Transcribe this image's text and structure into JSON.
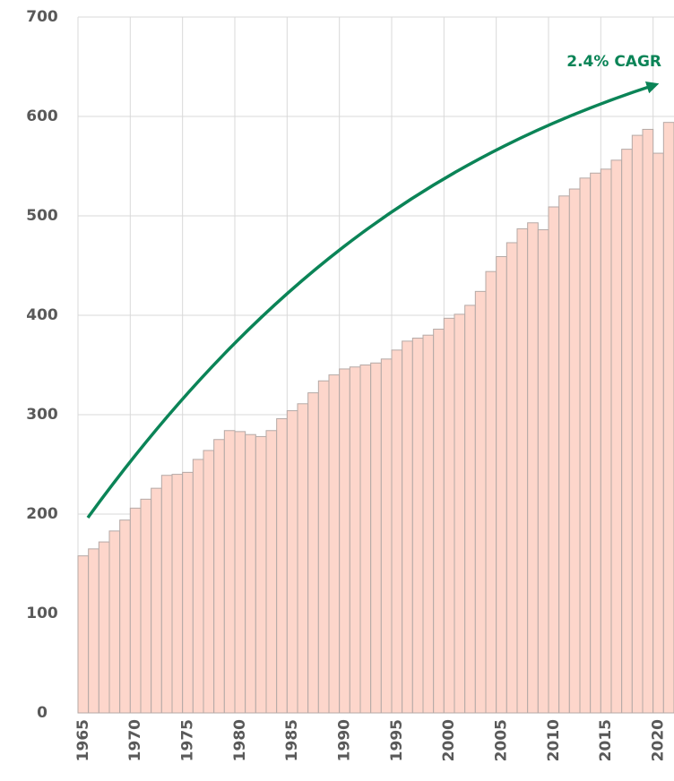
{
  "chart_data": {
    "type": "bar",
    "annotation": "2.4% CAGR",
    "categories": [
      "1965",
      null,
      null,
      null,
      null,
      "1970",
      null,
      null,
      null,
      null,
      "1975",
      null,
      null,
      null,
      null,
      "1980",
      null,
      null,
      null,
      null,
      "1985",
      null,
      null,
      null,
      null,
      "1990",
      null,
      null,
      null,
      null,
      "1995",
      null,
      null,
      null,
      null,
      "2000",
      null,
      null,
      null,
      null,
      "2005",
      null,
      null,
      null,
      null,
      "2010",
      null,
      null,
      null,
      null,
      "2015",
      null,
      null,
      null,
      null,
      "2020",
      null
    ],
    "values": [
      158,
      165,
      172,
      183,
      194,
      206,
      215,
      226,
      239,
      240,
      242,
      255,
      264,
      275,
      284,
      283,
      280,
      278,
      284,
      296,
      304,
      311,
      322,
      334,
      340,
      346,
      348,
      350,
      352,
      356,
      365,
      374,
      377,
      380,
      386,
      397,
      401,
      410,
      424,
      444,
      459,
      473,
      487,
      493,
      486,
      509,
      520,
      527,
      538,
      543,
      547,
      556,
      567,
      581,
      587,
      563,
      594
    ],
    "color": "#fdd6cb",
    "ylim": [
      0,
      700
    ],
    "yticks": [
      0,
      100,
      200,
      300,
      400,
      500,
      600,
      700
    ],
    "grid": true
  }
}
